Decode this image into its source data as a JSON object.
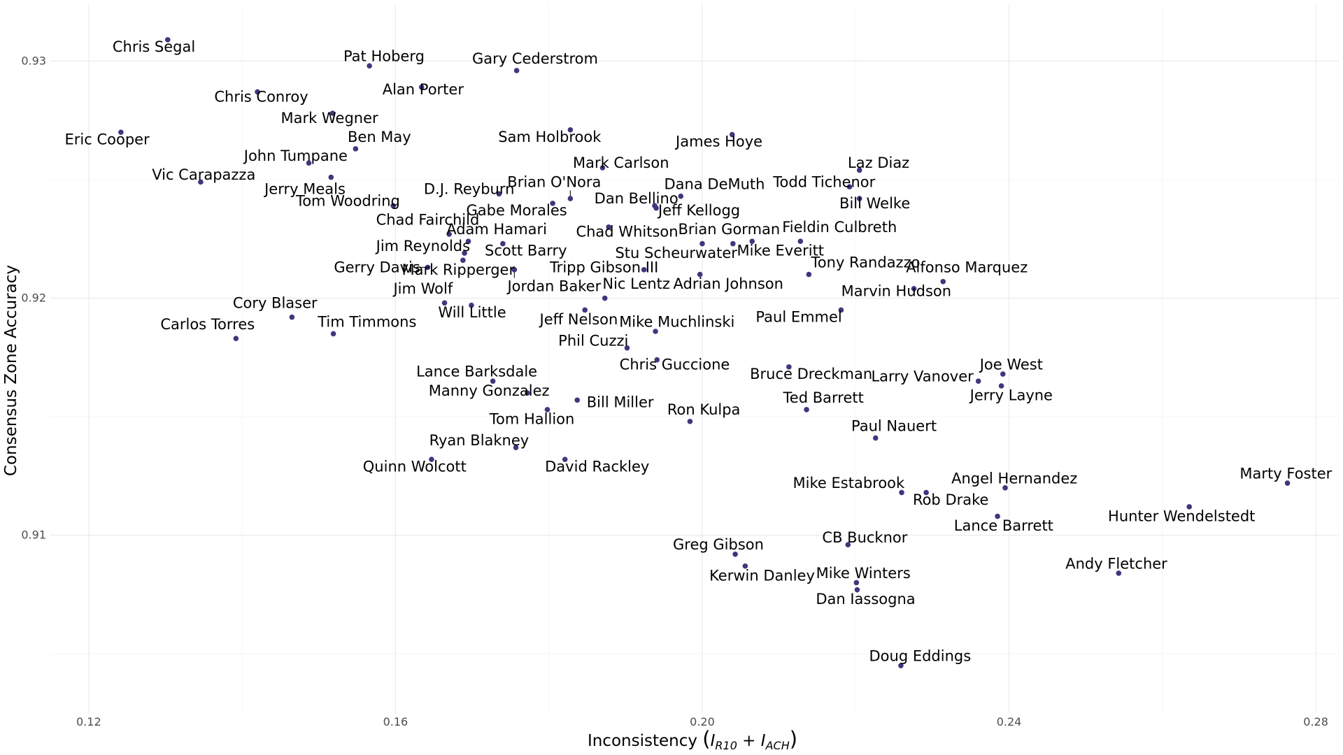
{
  "chart_data": {
    "type": "scatter",
    "xlabel": "Inconsistency",
    "xlabel_math": {
      "open": "(",
      "base1": "I",
      "sub1": "R10",
      "plus": " + ",
      "base2": "I",
      "sub2": "ACH",
      "close": ")"
    },
    "ylabel": "Consensus Zone Accuracy",
    "xlim": [
      0.115,
      0.283
    ],
    "ylim": [
      0.9025,
      0.9324
    ],
    "x_ticks": [
      0.12,
      0.16,
      0.2,
      0.24,
      0.28
    ],
    "x_tick_labels": [
      "0.12",
      "0.16",
      "0.20",
      "0.24",
      "0.28"
    ],
    "y_ticks": [
      0.91,
      0.92,
      0.93
    ],
    "y_tick_labels": [
      "0.91",
      "0.92",
      "0.93"
    ],
    "grid": true,
    "point_color": "#46337e",
    "points": [
      {
        "name": "Chris Segal",
        "x": 0.1303,
        "y": 0.9309,
        "lx": 0.1285,
        "ly": 0.9306
      },
      {
        "name": "Pat Hoberg",
        "x": 0.1566,
        "y": 0.9298,
        "lx": 0.1585,
        "ly": 0.9302
      },
      {
        "name": "Gary Cederstrom",
        "x": 0.1758,
        "y": 0.9296,
        "lx": 0.1782,
        "ly": 0.9301
      },
      {
        "name": "Alan Porter",
        "x": 0.1634,
        "y": 0.9289,
        "lx": 0.1636,
        "ly": 0.9288
      },
      {
        "name": "Chris Conroy",
        "x": 0.142,
        "y": 0.9287,
        "lx": 0.1425,
        "ly": 0.9285
      },
      {
        "name": "Mark Wegner",
        "x": 0.1518,
        "y": 0.9278,
        "lx": 0.1514,
        "ly": 0.9276
      },
      {
        "name": "Sam Holbrook",
        "x": 0.1828,
        "y": 0.9271,
        "lx": 0.1801,
        "ly": 0.9268
      },
      {
        "name": "James Hoye",
        "x": 0.2039,
        "y": 0.9269,
        "lx": 0.2022,
        "ly": 0.9266
      },
      {
        "name": "Eric Cooper",
        "x": 0.1242,
        "y": 0.927,
        "lx": 0.1224,
        "ly": 0.9267
      },
      {
        "name": "Ben May",
        "x": 0.1548,
        "y": 0.9263,
        "lx": 0.1579,
        "ly": 0.9268
      },
      {
        "name": "John Tumpane",
        "x": 0.1487,
        "y": 0.9257,
        "lx": 0.147,
        "ly": 0.926
      },
      {
        "name": "Mark Carlson",
        "x": 0.187,
        "y": 0.9255,
        "lx": 0.1894,
        "ly": 0.9257
      },
      {
        "name": "Laz Diaz",
        "x": 0.2205,
        "y": 0.9254,
        "lx": 0.223,
        "ly": 0.9257
      },
      {
        "name": "Vic Carapazza",
        "x": 0.1346,
        "y": 0.9249,
        "lx": 0.135,
        "ly": 0.9252
      },
      {
        "name": "Jerry Meals",
        "x": 0.1516,
        "y": 0.9251,
        "lx": 0.1482,
        "ly": 0.9246
      },
      {
        "name": "D.J. Reyburn",
        "x": 0.1735,
        "y": 0.9244,
        "lx": 0.1696,
        "ly": 0.9246
      },
      {
        "name": "Brian O'Nora",
        "x": 0.1828,
        "y": 0.9242,
        "lx": 0.1807,
        "ly": 0.9249
      },
      {
        "name": "Dana DeMuth",
        "x": 0.1972,
        "y": 0.9243,
        "lx": 0.2016,
        "ly": 0.9248
      },
      {
        "name": "Todd Tichenor",
        "x": 0.2192,
        "y": 0.9247,
        "lx": 0.2159,
        "ly": 0.9249
      },
      {
        "name": "Bill Welke",
        "x": 0.2205,
        "y": 0.9242,
        "lx": 0.2225,
        "ly": 0.924
      },
      {
        "name": "Tom Woodring",
        "x": 0.1597,
        "y": 0.9239,
        "lx": 0.1538,
        "ly": 0.9241
      },
      {
        "name": "Dan Bellino",
        "x": 0.1938,
        "y": 0.9239,
        "lx": 0.1914,
        "ly": 0.9242
      },
      {
        "name": "Gabe Morales",
        "x": 0.1805,
        "y": 0.924,
        "lx": 0.1758,
        "ly": 0.9237
      },
      {
        "name": "Jeff Kellogg",
        "x": 0.194,
        "y": 0.9238,
        "lx": 0.1996,
        "ly": 0.9237
      },
      {
        "name": "Chad Fairchild",
        "x": 0.167,
        "y": 0.9227,
        "lx": 0.1642,
        "ly": 0.9233
      },
      {
        "name": "Chad Whitson",
        "x": 0.1878,
        "y": 0.923,
        "lx": 0.1902,
        "ly": 0.9228
      },
      {
        "name": "Adam Hamari",
        "x": 0.1695,
        "y": 0.9224,
        "lx": 0.1732,
        "ly": 0.9229
      },
      {
        "name": "Brian Gorman",
        "x": 0.2,
        "y": 0.9223,
        "lx": 0.2035,
        "ly": 0.9229
      },
      {
        "name": "Fieldin Culbreth",
        "x": 0.2128,
        "y": 0.9224,
        "lx": 0.2179,
        "ly": 0.923
      },
      {
        "name": "Mike Everitt",
        "x": 0.2065,
        "y": 0.9224,
        "lx": 0.2102,
        "ly": 0.922
      },
      {
        "name": "Scott Barry",
        "x": 0.174,
        "y": 0.9223,
        "lx": 0.177,
        "ly": 0.922
      },
      {
        "name": "Jim Reynolds",
        "x": 0.169,
        "y": 0.9219,
        "lx": 0.1636,
        "ly": 0.9222
      },
      {
        "name": "Stu Scheurwater",
        "x": 0.204,
        "y": 0.9223,
        "lx": 0.1966,
        "ly": 0.9219
      },
      {
        "name": "Mark Ripperger",
        "x": 0.1688,
        "y": 0.9216,
        "lx": 0.1682,
        "ly": 0.9212
      },
      {
        "name": "Gerry Davis",
        "x": 0.1642,
        "y": 0.9213,
        "lx": 0.1576,
        "ly": 0.9213
      },
      {
        "name": "Tripp Gibson III",
        "x": 0.1924,
        "y": 0.9212,
        "lx": 0.1872,
        "ly": 0.9213
      },
      {
        "name": "Jordan Baker",
        "x": 0.1755,
        "y": 0.9212,
        "lx": 0.1807,
        "ly": 0.9205
      },
      {
        "name": "Tony Randazzo",
        "x": 0.2139,
        "y": 0.921,
        "lx": 0.2213,
        "ly": 0.9215
      },
      {
        "name": "Alfonso Marquez",
        "x": 0.2314,
        "y": 0.9207,
        "lx": 0.2345,
        "ly": 0.9213
      },
      {
        "name": "Adrian Johnson",
        "x": 0.1997,
        "y": 0.921,
        "lx": 0.2034,
        "ly": 0.9206
      },
      {
        "name": "Nic Lentz",
        "x": 0.1873,
        "y": 0.92,
        "lx": 0.1914,
        "ly": 0.9206
      },
      {
        "name": "Jim Wolf",
        "x": 0.1664,
        "y": 0.9198,
        "lx": 0.1636,
        "ly": 0.9204
      },
      {
        "name": "Marvin Hudson",
        "x": 0.2276,
        "y": 0.9204,
        "lx": 0.2253,
        "ly": 0.9203
      },
      {
        "name": "Will Little",
        "x": 0.1699,
        "y": 0.9197,
        "lx": 0.17,
        "ly": 0.9194
      },
      {
        "name": "Cory Blaser",
        "x": 0.1465,
        "y": 0.9192,
        "lx": 0.1443,
        "ly": 0.9198
      },
      {
        "name": "Jeff Nelson",
        "x": 0.1847,
        "y": 0.9195,
        "lx": 0.1839,
        "ly": 0.9191
      },
      {
        "name": "Paul Emmel",
        "x": 0.2181,
        "y": 0.9195,
        "lx": 0.2126,
        "ly": 0.9192
      },
      {
        "name": "Mike Muchlinski",
        "x": 0.1939,
        "y": 0.9186,
        "lx": 0.1967,
        "ly": 0.919
      },
      {
        "name": "Carlos Torres",
        "x": 0.1392,
        "y": 0.9183,
        "lx": 0.1355,
        "ly": 0.9189
      },
      {
        "name": "Tim Timmons",
        "x": 0.1519,
        "y": 0.9185,
        "lx": 0.1563,
        "ly": 0.919
      },
      {
        "name": "Phil Cuzzi",
        "x": 0.1902,
        "y": 0.9179,
        "lx": 0.1858,
        "ly": 0.9182
      },
      {
        "name": "Chris Guccione",
        "x": 0.1941,
        "y": 0.9174,
        "lx": 0.1964,
        "ly": 0.9172
      },
      {
        "name": "Bruce Dreckman",
        "x": 0.2113,
        "y": 0.9171,
        "lx": 0.2142,
        "ly": 0.9168
      },
      {
        "name": "Joe West",
        "x": 0.2392,
        "y": 0.9168,
        "lx": 0.2403,
        "ly": 0.9172
      },
      {
        "name": "Lance Barksdale",
        "x": 0.1727,
        "y": 0.9165,
        "lx": 0.1706,
        "ly": 0.9169
      },
      {
        "name": "Larry Vanover",
        "x": 0.236,
        "y": 0.9165,
        "lx": 0.2287,
        "ly": 0.9167
      },
      {
        "name": "Jerry Layne",
        "x": 0.239,
        "y": 0.9163,
        "lx": 0.2403,
        "ly": 0.9159
      },
      {
        "name": "Manny Gonzalez",
        "x": 0.1772,
        "y": 0.916,
        "lx": 0.1722,
        "ly": 0.9161
      },
      {
        "name": "Bill Miller",
        "x": 0.1837,
        "y": 0.9157,
        "lx": 0.1893,
        "ly": 0.9156
      },
      {
        "name": "Ted Barrett",
        "x": 0.2136,
        "y": 0.9153,
        "lx": 0.2158,
        "ly": 0.9158
      },
      {
        "name": "Tom Hallion",
        "x": 0.1798,
        "y": 0.9153,
        "lx": 0.1778,
        "ly": 0.9149
      },
      {
        "name": "Ron Kulpa",
        "x": 0.1984,
        "y": 0.9148,
        "lx": 0.2002,
        "ly": 0.9153
      },
      {
        "name": "Paul Nauert",
        "x": 0.2226,
        "y": 0.9141,
        "lx": 0.225,
        "ly": 0.9146
      },
      {
        "name": "Ryan Blakney",
        "x": 0.1757,
        "y": 0.9137,
        "lx": 0.1709,
        "ly": 0.914
      },
      {
        "name": "Quinn Wolcott",
        "x": 0.1647,
        "y": 0.9132,
        "lx": 0.1625,
        "ly": 0.9129
      },
      {
        "name": "David Rackley",
        "x": 0.1821,
        "y": 0.9132,
        "lx": 0.1863,
        "ly": 0.9129
      },
      {
        "name": "Marty Foster",
        "x": 0.2763,
        "y": 0.9122,
        "lx": 0.2761,
        "ly": 0.9126
      },
      {
        "name": "Angel Hernandez",
        "x": 0.2395,
        "y": 0.912,
        "lx": 0.2407,
        "ly": 0.9124
      },
      {
        "name": "Mike Estabrook",
        "x": 0.226,
        "y": 0.9118,
        "lx": 0.2191,
        "ly": 0.9122
      },
      {
        "name": "Rob Drake",
        "x": 0.2292,
        "y": 0.9118,
        "lx": 0.2324,
        "ly": 0.9115
      },
      {
        "name": "Hunter Wendelstedt",
        "x": 0.2635,
        "y": 0.9112,
        "lx": 0.2625,
        "ly": 0.9108
      },
      {
        "name": "Lance Barrett",
        "x": 0.2385,
        "y": 0.9108,
        "lx": 0.2393,
        "ly": 0.9104
      },
      {
        "name": "CB Bucknor",
        "x": 0.219,
        "y": 0.9096,
        "lx": 0.2212,
        "ly": 0.9099
      },
      {
        "name": "Greg Gibson",
        "x": 0.2043,
        "y": 0.9092,
        "lx": 0.2021,
        "ly": 0.9096
      },
      {
        "name": "Kerwin Danley",
        "x": 0.2056,
        "y": 0.9087,
        "lx": 0.2078,
        "ly": 0.9083
      },
      {
        "name": "Andy Fletcher",
        "x": 0.2543,
        "y": 0.9084,
        "lx": 0.254,
        "ly": 0.9088
      },
      {
        "name": "Mike Winters",
        "x": 0.2201,
        "y": 0.908,
        "lx": 0.221,
        "ly": 0.9084
      },
      {
        "name": "Dan Iassogna",
        "x": 0.2202,
        "y": 0.9077,
        "lx": 0.2213,
        "ly": 0.9073
      },
      {
        "name": "Doug Eddings",
        "x": 0.2259,
        "y": 0.9045,
        "lx": 0.2284,
        "ly": 0.9049
      }
    ]
  }
}
